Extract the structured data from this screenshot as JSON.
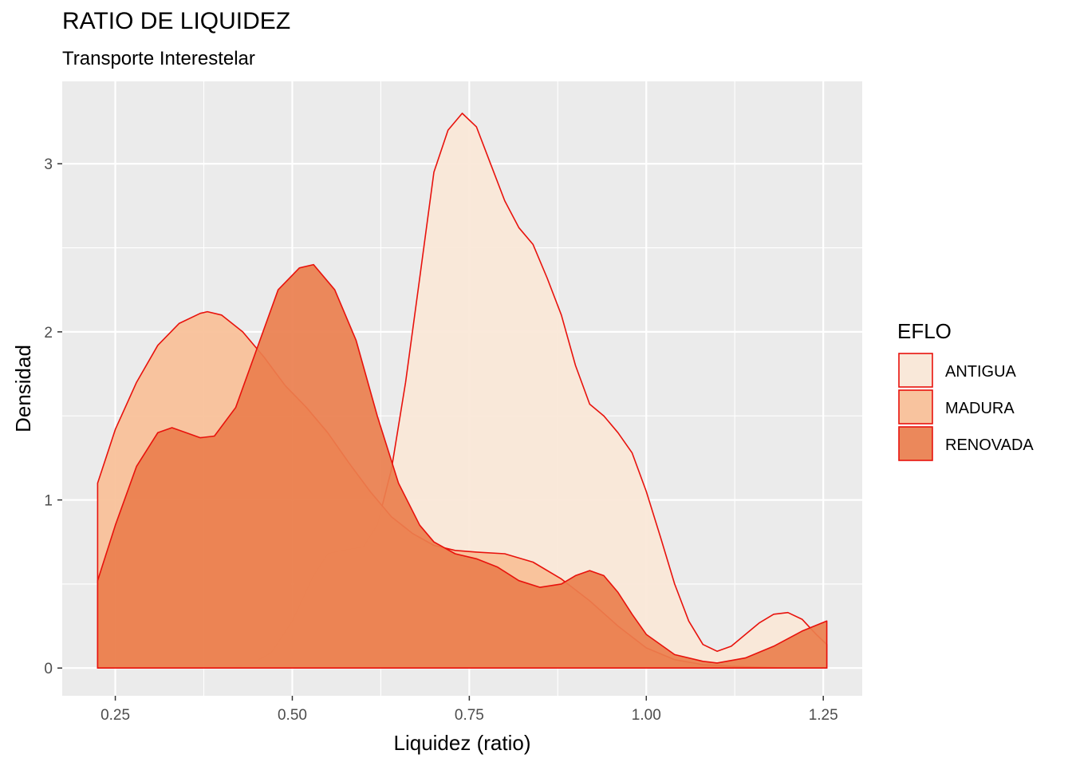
{
  "chart_data": {
    "type": "area",
    "title": "RATIO DE LIQUIDEZ",
    "subtitle": "Transporte Interestelar",
    "xlabel": "Liquidez (ratio)",
    "ylabel": "Densidad",
    "xlim": [
      0.175,
      1.305
    ],
    "ylim": [
      -0.165,
      3.49
    ],
    "x_ticks": [
      0.25,
      0.5,
      0.75,
      1.0,
      1.25
    ],
    "x_tick_labels": [
      "0.25",
      "0.50",
      "0.75",
      "1.00",
      "1.25"
    ],
    "y_ticks": [
      0,
      1,
      2,
      3
    ],
    "y_tick_labels": [
      "0",
      "1",
      "2",
      "3"
    ],
    "grid": true,
    "legend": {
      "title": "EFLO",
      "position": "right"
    },
    "outline_color": "#e8120c",
    "background": "#ebebeb",
    "series": [
      {
        "name": "ANTIGUA",
        "color": "#fae7d7",
        "x": [
          0.225,
          0.4,
          0.44,
          0.47,
          0.5,
          0.53,
          0.55,
          0.57,
          0.6,
          0.62,
          0.64,
          0.66,
          0.68,
          0.7,
          0.72,
          0.74,
          0.76,
          0.78,
          0.8,
          0.82,
          0.84,
          0.86,
          0.88,
          0.9,
          0.92,
          0.94,
          0.96,
          0.98,
          1.0,
          1.02,
          1.04,
          1.06,
          1.08,
          1.1,
          1.12,
          1.14,
          1.16,
          1.18,
          1.2,
          1.22,
          1.24,
          1.255
        ],
        "y": [
          0,
          0,
          0.02,
          0.09,
          0.28,
          0.55,
          0.68,
          0.7,
          0.72,
          0.85,
          1.18,
          1.7,
          2.32,
          2.95,
          3.2,
          3.3,
          3.22,
          3.0,
          2.78,
          2.62,
          2.52,
          2.32,
          2.1,
          1.8,
          1.57,
          1.5,
          1.4,
          1.28,
          1.05,
          0.78,
          0.5,
          0.28,
          0.14,
          0.1,
          0.13,
          0.2,
          0.27,
          0.32,
          0.33,
          0.29,
          0.2,
          0.14
        ]
      },
      {
        "name": "MADURA",
        "color": "#f9bf97",
        "x": [
          0.225,
          0.25,
          0.28,
          0.31,
          0.34,
          0.37,
          0.38,
          0.4,
          0.43,
          0.46,
          0.49,
          0.52,
          0.55,
          0.58,
          0.61,
          0.64,
          0.67,
          0.7,
          0.73,
          0.76,
          0.8,
          0.84,
          0.88,
          0.92,
          0.96,
          1.0,
          1.04,
          1.08,
          1.12,
          1.16,
          1.2,
          1.255
        ],
        "y": [
          1.1,
          1.42,
          1.7,
          1.92,
          2.05,
          2.11,
          2.12,
          2.1,
          2.0,
          1.85,
          1.68,
          1.55,
          1.4,
          1.22,
          1.05,
          0.9,
          0.8,
          0.73,
          0.7,
          0.69,
          0.68,
          0.63,
          0.53,
          0.4,
          0.25,
          0.12,
          0.05,
          0.02,
          0.01,
          0.005,
          0,
          0
        ]
      },
      {
        "name": "RENOVADA",
        "color": "#ea7f4e",
        "x": [
          0.225,
          0.25,
          0.28,
          0.31,
          0.33,
          0.35,
          0.37,
          0.39,
          0.42,
          0.45,
          0.48,
          0.51,
          0.53,
          0.56,
          0.59,
          0.62,
          0.65,
          0.68,
          0.7,
          0.73,
          0.76,
          0.79,
          0.82,
          0.85,
          0.88,
          0.9,
          0.92,
          0.94,
          0.96,
          0.98,
          1.0,
          1.04,
          1.08,
          1.1,
          1.14,
          1.18,
          1.22,
          1.255
        ],
        "y": [
          0.52,
          0.85,
          1.2,
          1.4,
          1.43,
          1.4,
          1.37,
          1.38,
          1.55,
          1.9,
          2.25,
          2.38,
          2.4,
          2.25,
          1.95,
          1.5,
          1.1,
          0.85,
          0.75,
          0.68,
          0.65,
          0.6,
          0.52,
          0.48,
          0.5,
          0.55,
          0.58,
          0.55,
          0.45,
          0.32,
          0.2,
          0.08,
          0.04,
          0.03,
          0.06,
          0.13,
          0.22,
          0.28
        ]
      }
    ]
  }
}
